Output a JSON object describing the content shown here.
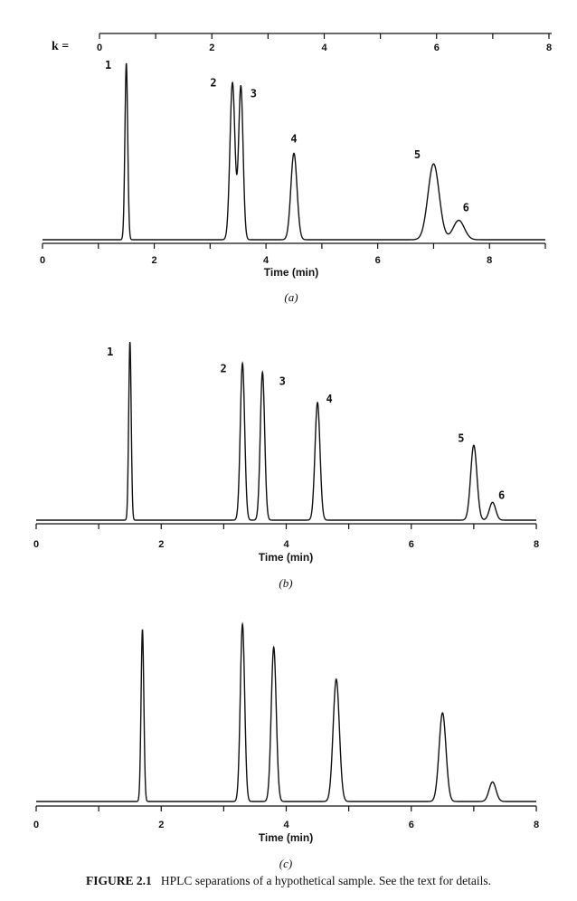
{
  "caption": {
    "label": "FIGURE 2.1",
    "text": "HPLC separations of a hypothetical sample. See the text for details."
  },
  "k_axis": {
    "label": "k =",
    "range": [
      0,
      8
    ],
    "ticks": [
      "0",
      "2",
      "4",
      "6",
      "8"
    ]
  },
  "chart_data": [
    {
      "type": "line",
      "panel": "a",
      "panel_label": "(a)",
      "xlabel": "Time (min)",
      "xlim": [
        0,
        9
      ],
      "ticks": [
        "0",
        "2",
        "4",
        "6",
        "8"
      ],
      "peaks": [
        {
          "label": "1",
          "time": 1.5,
          "height": 1.0,
          "width": 0.025
        },
        {
          "label": "2",
          "time": 3.4,
          "height": 0.89,
          "width": 0.045
        },
        {
          "label": "3",
          "time": 3.55,
          "height": 0.87,
          "width": 0.04
        },
        {
          "label": "4",
          "time": 4.5,
          "height": 0.49,
          "width": 0.055
        },
        {
          "label": "5",
          "time": 7.0,
          "height": 0.43,
          "width": 0.1
        },
        {
          "label": "6",
          "time": 7.45,
          "height": 0.11,
          "width": 0.1
        }
      ]
    },
    {
      "type": "line",
      "panel": "b",
      "panel_label": "(b)",
      "xlabel": "Time (min)",
      "xlim": [
        0,
        8
      ],
      "ticks": [
        "0",
        "2",
        "4",
        "6",
        "8"
      ],
      "peaks": [
        {
          "label": "1",
          "time": 1.5,
          "height": 1.0,
          "width": 0.02
        },
        {
          "label": "2",
          "time": 3.3,
          "height": 0.88,
          "width": 0.035
        },
        {
          "label": "3",
          "time": 3.62,
          "height": 0.83,
          "width": 0.035
        },
        {
          "label": "4",
          "time": 4.5,
          "height": 0.66,
          "width": 0.04
        },
        {
          "label": "5",
          "time": 7.0,
          "height": 0.42,
          "width": 0.05
        },
        {
          "label": "6",
          "time": 7.3,
          "height": 0.1,
          "width": 0.05
        }
      ]
    },
    {
      "type": "line",
      "panel": "c",
      "panel_label": "(c)",
      "xlabel": "Time (min)",
      "xlim": [
        0,
        8
      ],
      "ticks": [
        "0",
        "2",
        "4",
        "6",
        "8"
      ],
      "peaks": [
        {
          "label": "",
          "time": 1.7,
          "height": 0.97,
          "width": 0.022
        },
        {
          "label": "",
          "time": 3.3,
          "height": 1.0,
          "width": 0.035
        },
        {
          "label": "",
          "time": 3.8,
          "height": 0.87,
          "width": 0.04
        },
        {
          "label": "",
          "time": 4.8,
          "height": 0.69,
          "width": 0.05
        },
        {
          "label": "",
          "time": 6.5,
          "height": 0.5,
          "width": 0.055
        },
        {
          "label": "",
          "time": 7.3,
          "height": 0.11,
          "width": 0.055
        }
      ]
    }
  ]
}
